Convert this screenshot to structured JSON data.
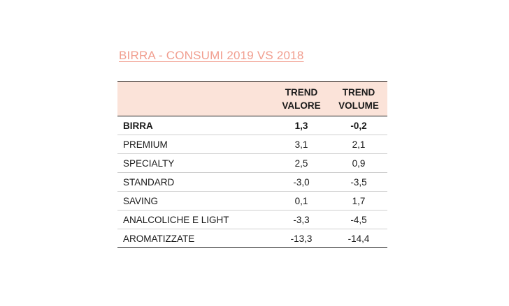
{
  "title": "BIRRA - CONSUMI 2019 VS 2018",
  "columns": {
    "label": "",
    "trend_valore": "TREND VALORE",
    "trend_volume": "TREND VOLUME"
  },
  "rows": [
    {
      "label": "BIRRA",
      "trend_valore": "1,3",
      "trend_volume": "-0,2",
      "bold": true
    },
    {
      "label": "PREMIUM",
      "trend_valore": "3,1",
      "trend_volume": "2,1"
    },
    {
      "label": "SPECIALTY",
      "trend_valore": "2,5",
      "trend_volume": "0,9"
    },
    {
      "label": "STANDARD",
      "trend_valore": "-3,0",
      "trend_volume": "-3,5"
    },
    {
      "label": "SAVING",
      "trend_valore": "0,1",
      "trend_volume": "1,7"
    },
    {
      "label": "ANALCOLICHE E LIGHT",
      "trend_valore": "-3,3",
      "trend_volume": "-4,5"
    },
    {
      "label": "AROMATIZZATE",
      "trend_valore": "-13,3",
      "trend_volume": "-14,4"
    }
  ]
}
